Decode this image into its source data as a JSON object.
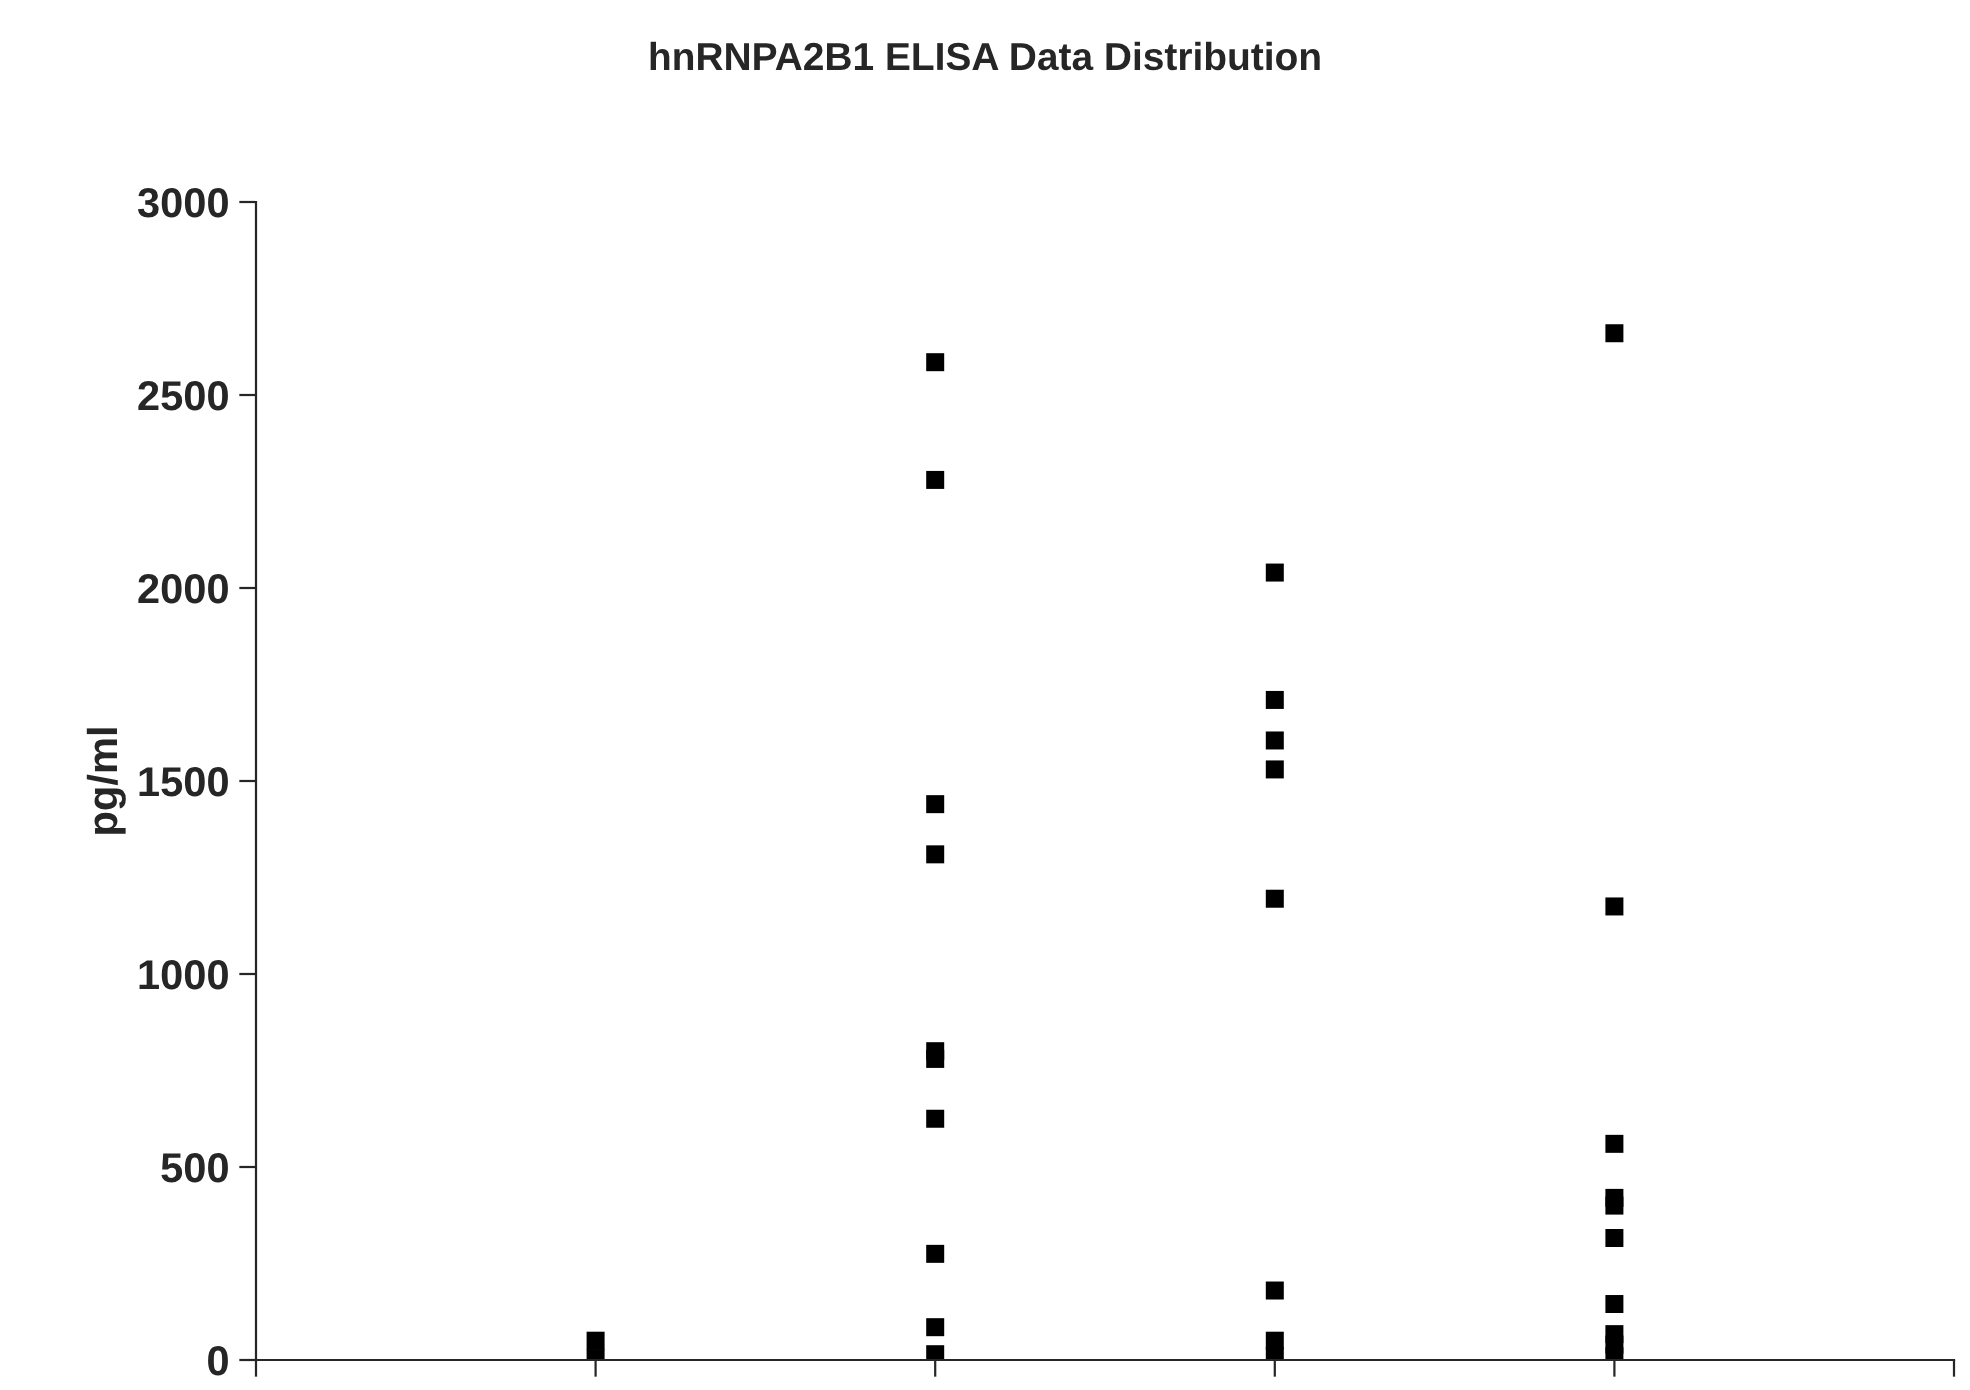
{
  "chart_data": {
    "type": "scatter",
    "title": "hnRNPA2B1 ELISA Data Distribution",
    "ylabel": "pg/ml",
    "categories": [
      null,
      null,
      null,
      null
    ],
    "series": [
      {
        "color": "#000000",
        "values": [
          50,
          2585,
          2040,
          2660
        ]
      },
      {
        "color": "#000000",
        "values": [
          5,
          2280,
          1710,
          1175
        ]
      },
      {
        "color": "#000000",
        "values": [
          null,
          1440,
          1605,
          560
        ]
      },
      {
        "color": "#000000",
        "values": [
          null,
          1310,
          1530,
          420
        ]
      },
      {
        "color": "#000000",
        "values": [
          null,
          800,
          1195,
          400
        ]
      },
      {
        "color": "#000000",
        "values": [
          null,
          780,
          180,
          316
        ]
      },
      {
        "color": "#000000",
        "values": [
          null,
          625,
          50,
          145
        ]
      },
      {
        "color": "#000000",
        "values": [
          null,
          275,
          10,
          67
        ]
      },
      {
        "color": "#000000",
        "values": [
          null,
          85,
          null,
          40
        ]
      },
      {
        "color": "#000000",
        "values": [
          null,
          15,
          null,
          10
        ]
      }
    ],
    "ylim": [
      0,
      3000
    ],
    "yticks": [
      0,
      500,
      1000,
      1500,
      2000,
      2500,
      3000
    ],
    "marker": "square",
    "grid": false,
    "legend": false
  }
}
